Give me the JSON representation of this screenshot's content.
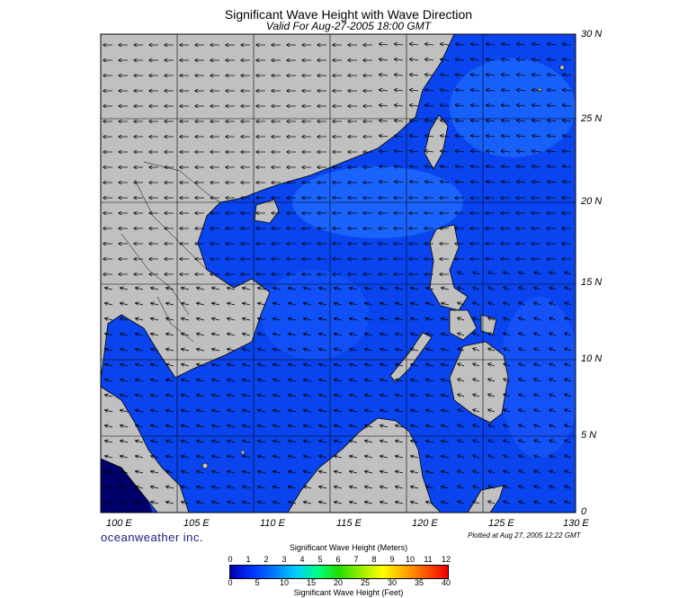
{
  "header": {
    "title": "Significant Wave Height with Wave Direction",
    "subtitle": "Valid For Aug-27-2005 18:00 GMT"
  },
  "map": {
    "lon_labels": [
      "100 E",
      "105 E",
      "110 E",
      "115 E",
      "120 E",
      "125 E",
      "130 E"
    ],
    "lat_labels": [
      "30 N",
      "25 N",
      "20 N",
      "15 N",
      "10 N",
      "5 N",
      "0"
    ],
    "land_color": "#c0c0c0",
    "sea_color": "#0a44ee",
    "swell_color": "#1e6cff"
  },
  "footer": {
    "brand": "oceanweather inc.",
    "plotted": "Plotted at Aug 27, 2005 12:22 GMT"
  },
  "colorbar": {
    "title_top": "Significant Wave Height (Meters)",
    "meters_ticks": [
      "0",
      "1",
      "2",
      "3",
      "4",
      "5",
      "6",
      "7",
      "8",
      "9",
      "10",
      "11",
      "12"
    ],
    "feet_ticks": [
      "0",
      "5",
      "10",
      "15",
      "20",
      "25",
      "30",
      "35",
      "40"
    ],
    "title_bottom": "Significant Wave Height (Feet)"
  }
}
